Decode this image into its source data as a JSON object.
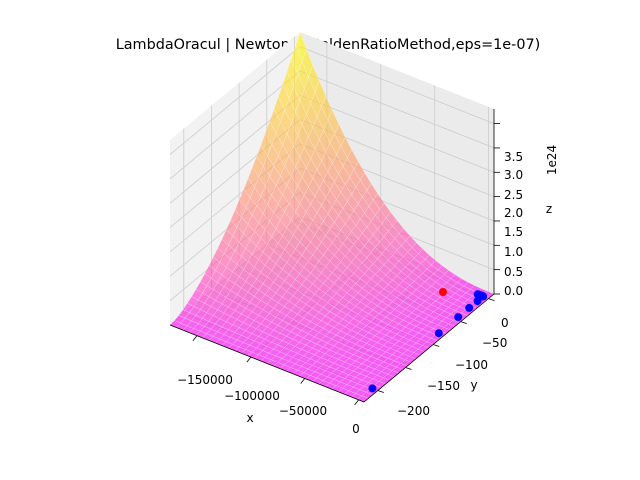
{
  "chart_data": {
    "type": "3d-surface-scatter",
    "title": "LambdaOracul | Newton(4,GoldenRatioMethod,eps=1e-07)",
    "xlabel": "x",
    "ylabel": "y",
    "zlabel": "z",
    "z_offset_label": "1e24",
    "x_ticks": [
      "−150000",
      "−100000",
      "−50000",
      "0"
    ],
    "y_ticks": [
      "0",
      "−50",
      "−100",
      "−150",
      "−200"
    ],
    "z_ticks": [
      "0.0",
      "0.5",
      "1.0",
      "1.5",
      "2.0",
      "2.5",
      "3.0",
      "3.5"
    ],
    "xlim": [
      -175000,
      5000
    ],
    "ylim": [
      -225,
      10
    ],
    "zlim_e24": [
      0,
      3.8
    ],
    "surface": {
      "colormap": "spring",
      "alpha": 0.6,
      "z_at_min_x_max_y_e24": 3.8,
      "z_at_min_x_min_y_e24": 0.0
    },
    "trajectory": {
      "start_color": "#ff0000",
      "path_color": "#0000ff",
      "start_point": {
        "x": -5000,
        "y": 0,
        "z_e24": 0.0
      },
      "iterates_along_x": {
        "from_x": -5000,
        "to_x": 0,
        "y": 0,
        "count": 34
      },
      "iterates_along_y": [
        {
          "x": 0,
          "y": -10
        },
        {
          "x": 0,
          "y": -25
        },
        {
          "x": 0,
          "y": -45
        },
        {
          "x": 0,
          "y": -80
        },
        {
          "x": 0,
          "y": -200
        }
      ]
    }
  }
}
